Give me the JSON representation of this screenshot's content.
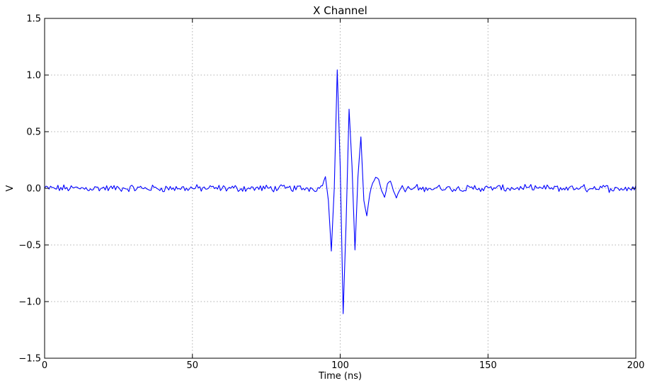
{
  "chart_data": {
    "type": "line",
    "title": "X Channel",
    "xlabel": "Time (ns)",
    "ylabel": "V",
    "xlim": [
      0,
      200
    ],
    "ylim": [
      -1.5,
      1.5
    ],
    "xticks": [
      0,
      50,
      100,
      150,
      200
    ],
    "xtick_labels": [
      "0",
      "50",
      "100",
      "150",
      "200"
    ],
    "yticks": [
      -1.5,
      -1.0,
      -0.5,
      0.0,
      0.5,
      1.0,
      1.5
    ],
    "ytick_labels": [
      "−1.5",
      "−1.0",
      "−0.5",
      "0.0",
      "0.5",
      "1.0",
      "1.5"
    ],
    "grid": true,
    "legend": "none",
    "series": [
      {
        "color": "#0000ff",
        "x": [
          93,
          94,
          95,
          96,
          97,
          98,
          99,
          100,
          101,
          102,
          103,
          104,
          105,
          106,
          107,
          108,
          109,
          110,
          111,
          112,
          113,
          114,
          115,
          116,
          117,
          118,
          119,
          120,
          121,
          122,
          123,
          124,
          125
        ],
        "y": [
          0.0,
          0.03,
          0.1,
          -0.1,
          -0.55,
          0.0,
          1.05,
          0.2,
          -1.1,
          -0.3,
          0.7,
          0.2,
          -0.55,
          0.1,
          0.45,
          -0.1,
          -0.25,
          -0.05,
          0.05,
          0.1,
          0.08,
          -0.02,
          -0.08,
          0.04,
          0.06,
          -0.02,
          -0.08,
          -0.02,
          0.02,
          -0.03,
          0.01,
          -0.01,
          0.0
        ],
        "noise_amplitude": 0.025
      }
    ]
  }
}
